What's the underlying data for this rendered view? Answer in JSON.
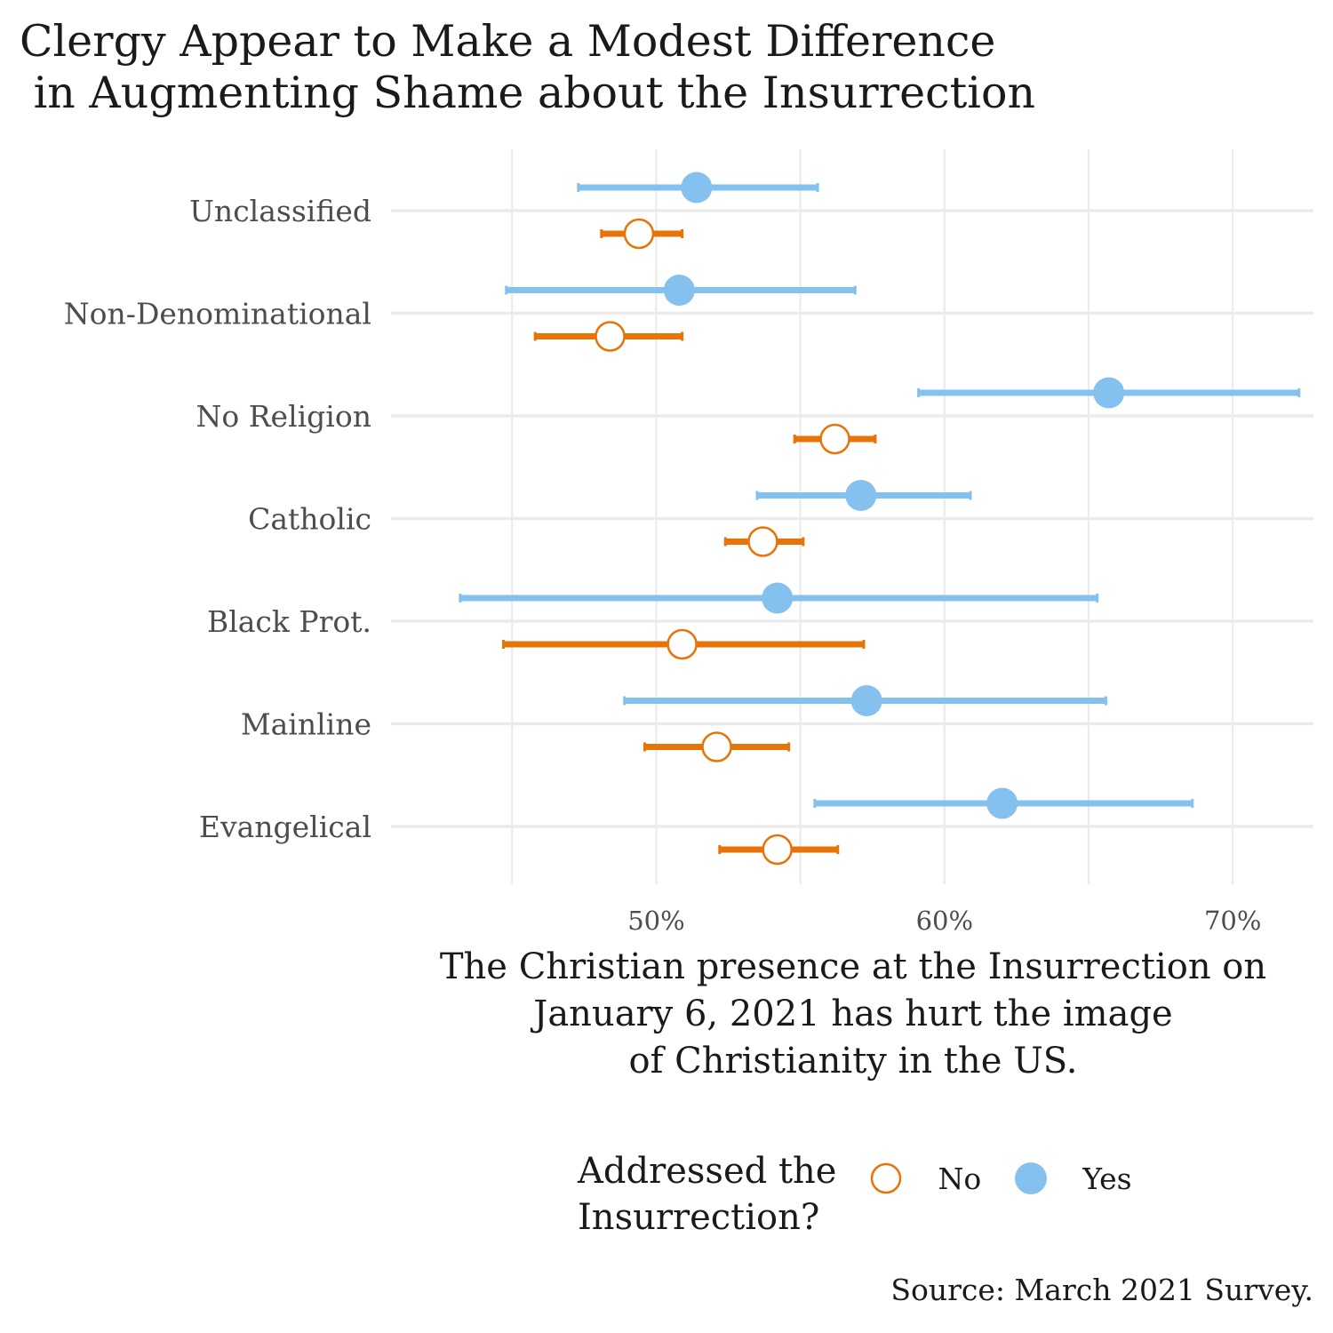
{
  "chart_data": {
    "type": "pointrange",
    "title": [
      "Clergy Appear to Make a Modest Difference",
      " in Augmenting Shame about the Insurrection"
    ],
    "xlabel": [
      "The Christian presence at the Insurrection on",
      "January 6, 2021 has hurt the image",
      "of Christianity in the US."
    ],
    "ylabel": "",
    "x_ticks": [
      50,
      60,
      70
    ],
    "x_tick_labels": [
      "50%",
      "60%",
      "70%"
    ],
    "xlim": [
      40.8,
      72.8
    ],
    "categories": [
      "Unclassified",
      "Non-Denominational",
      "No Religion",
      "Catholic",
      "Black Prot.",
      "Mainline",
      "Evangelical"
    ],
    "legend_title": [
      "Addressed the",
      "Insurrection?"
    ],
    "legend_placement": "bottom",
    "series": [
      {
        "name": "No",
        "color": "#E87308",
        "marker": "open-circle",
        "points": [
          {
            "category": "Unclassified",
            "estimate": 49.4,
            "low": 48.1,
            "high": 50.9
          },
          {
            "category": "Non-Denominational",
            "estimate": 48.4,
            "low": 45.8,
            "high": 50.9
          },
          {
            "category": "No Religion",
            "estimate": 56.2,
            "low": 54.8,
            "high": 57.6
          },
          {
            "category": "Catholic",
            "estimate": 53.7,
            "low": 52.4,
            "high": 55.1
          },
          {
            "category": "Black Prot.",
            "estimate": 50.9,
            "low": 44.7,
            "high": 57.2
          },
          {
            "category": "Mainline",
            "estimate": 52.1,
            "low": 49.6,
            "high": 54.6
          },
          {
            "category": "Evangelical",
            "estimate": 54.2,
            "low": 52.2,
            "high": 56.3
          }
        ]
      },
      {
        "name": "Yes",
        "color": "#85C1EE",
        "marker": "filled-circle",
        "points": [
          {
            "category": "Unclassified",
            "estimate": 51.4,
            "low": 47.3,
            "high": 55.6
          },
          {
            "category": "Non-Denominational",
            "estimate": 50.8,
            "low": 44.8,
            "high": 56.9
          },
          {
            "category": "No Religion",
            "estimate": 65.7,
            "low": 59.1,
            "high": 72.3
          },
          {
            "category": "Catholic",
            "estimate": 57.1,
            "low": 53.5,
            "high": 60.9
          },
          {
            "category": "Black Prot.",
            "estimate": 54.2,
            "low": 43.2,
            "high": 65.3
          },
          {
            "category": "Mainline",
            "estimate": 57.3,
            "low": 48.9,
            "high": 65.6
          },
          {
            "category": "Evangelical",
            "estimate": 62.0,
            "low": 55.5,
            "high": 68.6
          }
        ]
      }
    ],
    "gridlines": true
  },
  "caption": "Source: March 2021 Survey.",
  "colors": {
    "no": "#E87308",
    "yes": "#85C1EE",
    "grid": "#EBEBEB",
    "text": "#1a1a1a",
    "axis_text": "#4d4d4d"
  }
}
